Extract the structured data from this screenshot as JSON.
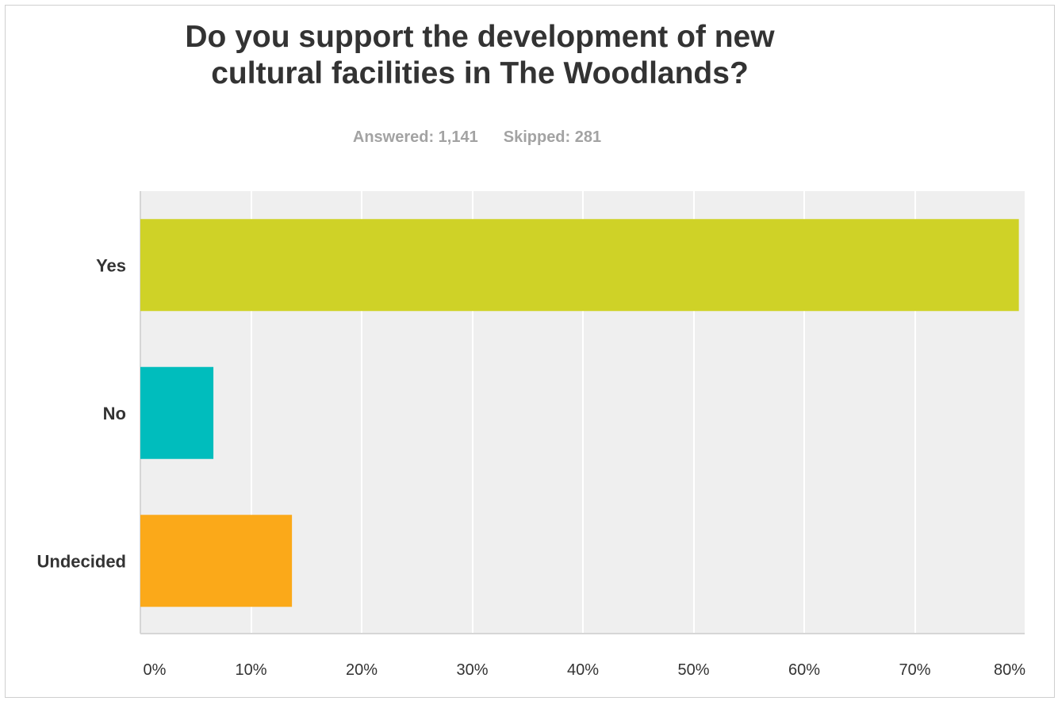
{
  "chart_data": {
    "type": "bar",
    "orientation": "horizontal",
    "title": "Do you support the development of new cultural facilities in The Woodlands?",
    "title_lines": [
      "Do you support the development of new",
      "cultural facilities in The Woodlands?"
    ],
    "stats": {
      "answered": "Answered: 1,141",
      "skipped": "Skipped: 281"
    },
    "categories": [
      "Yes",
      "No",
      "Undecided"
    ],
    "values": [
      79.4,
      6.6,
      13.7
    ],
    "colors": [
      "#cfd227",
      "#00bdbd",
      "#fba919"
    ],
    "xlim": [
      0,
      80
    ],
    "x_ticks": [
      0,
      10,
      20,
      30,
      40,
      50,
      60,
      70,
      80
    ],
    "x_tick_labels": [
      "0%",
      "10%",
      "20%",
      "30%",
      "40%",
      "50%",
      "60%",
      "70%",
      "80%"
    ],
    "grid": true,
    "background_color": "#efefef",
    "xlabel": "",
    "ylabel": ""
  }
}
